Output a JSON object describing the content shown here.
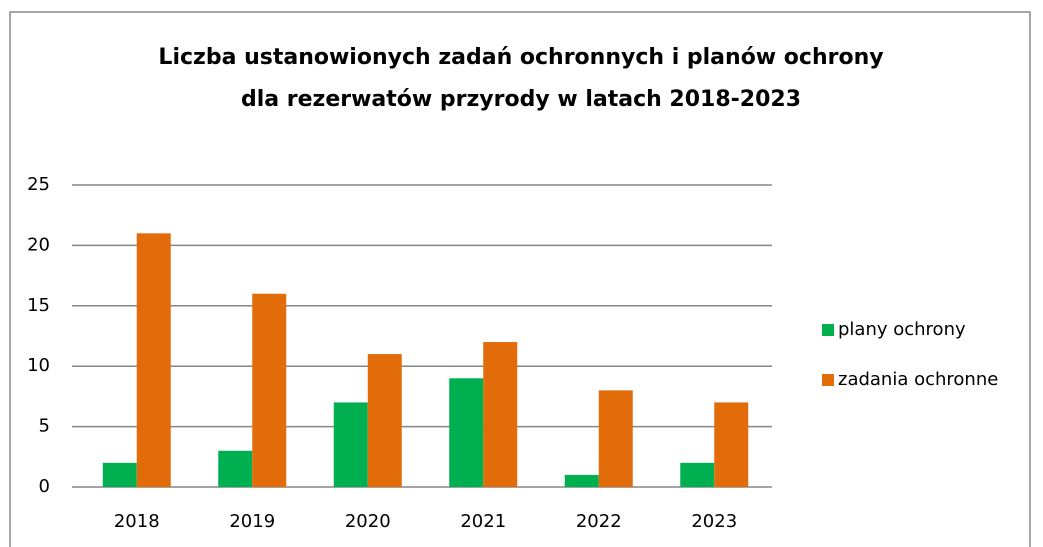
{
  "chart_data": {
    "type": "bar",
    "title": [
      "Liczba ustanowionych zadań ochronnych i planów ochrony",
      "dla rezerwatów przyrody w latach 2018-2023"
    ],
    "categories": [
      "2018",
      "2019",
      "2020",
      "2021",
      "2022",
      "2023"
    ],
    "series": [
      {
        "name": "plany ochrony",
        "color": "#00b050",
        "values": [
          2,
          3,
          7,
          9,
          1,
          2
        ]
      },
      {
        "name": "zadania ochronne",
        "color": "#e36c0a",
        "values": [
          21,
          16,
          11,
          12,
          8,
          7
        ]
      }
    ],
    "ylim": [
      0,
      25
    ],
    "yticks": [
      0,
      5,
      10,
      15,
      20,
      25
    ],
    "grid": true,
    "legend": "right"
  }
}
